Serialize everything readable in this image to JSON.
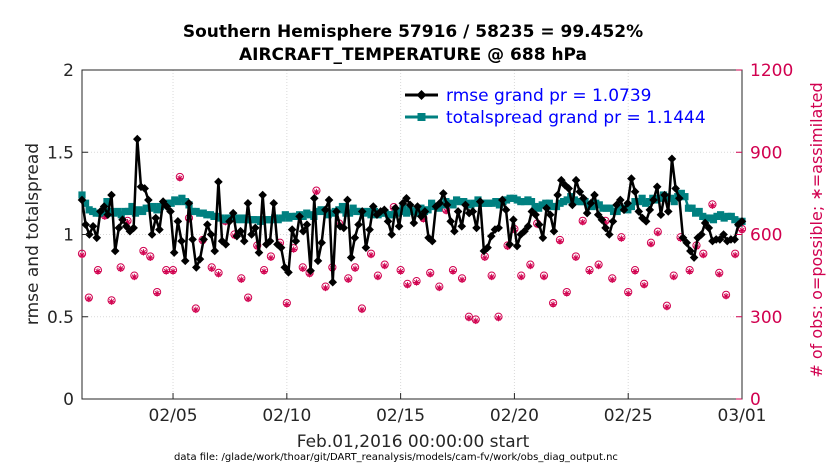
{
  "chart_data": {
    "type": "line",
    "title": "Southern Hemisphere 57916 / 58235 = 99.452%",
    "subtitle": "AIRCRAFT_TEMPERATURE @ 688 hPa",
    "xlabel": "Feb.01,2016 00:00:00 start",
    "ylabel": "rmse and totalspread",
    "y2label": "# of obs: o=possible; ∗=assimilated",
    "footnote": "data file: /glade/work/thoar/git/DART_reanalysis/models/cam-fv/work/obs_diag_output.nc",
    "xlim": [
      1,
      30
    ],
    "ylim": [
      0,
      2
    ],
    "y2lim": [
      0,
      1200
    ],
    "xticks": [
      5,
      10,
      15,
      20,
      25,
      30
    ],
    "xtick_labels": [
      "02/05",
      "02/10",
      "02/15",
      "02/20",
      "02/25",
      "03/01"
    ],
    "yticks": [
      0,
      0.5,
      1,
      1.5,
      2
    ],
    "ytick_labels": [
      "0",
      "0.5",
      "1",
      "1.5",
      "2"
    ],
    "y2ticks": [
      0,
      300,
      600,
      900,
      1200
    ],
    "y2tick_labels": [
      "0",
      "300",
      "600",
      "900",
      "1200"
    ],
    "grid": true,
    "legend_position": "top-right",
    "series": [
      {
        "name": "rmse grand pr = 1.0739",
        "color": "#000000",
        "marker": "diamond",
        "axis": "left",
        "values": [
          1.21,
          1.06,
          1.0,
          1.05,
          0.98,
          1.14,
          1.17,
          1.12,
          1.24,
          0.9,
          1.04,
          1.09,
          1.05,
          1.02,
          1.04,
          1.58,
          1.29,
          1.28,
          1.21,
          1.0,
          1.1,
          1.03,
          1.2,
          1.17,
          1.14,
          0.89,
          1.08,
          0.96,
          0.84,
          1.19,
          0.97,
          0.8,
          0.85,
          0.97,
          1.06,
          1.0,
          0.9,
          1.32,
          0.96,
          0.94,
          1.08,
          1.13,
          0.99,
          1.02,
          0.96,
          1.19,
          1.0,
          1.04,
          0.89,
          1.24,
          0.94,
          0.96,
          1.19,
          0.94,
          0.92,
          0.8,
          0.77,
          1.03,
          0.96,
          1.11,
          1.02,
          1.06,
          0.78,
          1.22,
          0.84,
          0.95,
          1.15,
          1.21,
          0.71,
          1.14,
          1.05,
          1.04,
          1.21,
          0.86,
          0.98,
          1.06,
          1.14,
          0.92,
          1.03,
          1.17,
          1.12,
          1.14,
          1.15,
          1.08,
          1.0,
          1.16,
          1.05,
          1.19,
          1.22,
          1.18,
          1.07,
          1.17,
          1.11,
          1.14,
          0.98,
          0.96,
          1.17,
          1.19,
          1.25,
          1.18,
          1.08,
          1.02,
          1.14,
          1.05,
          1.18,
          1.13,
          1.14,
          1.04,
          1.2,
          0.9,
          0.92,
          0.99,
          1.03,
          1.04,
          1.21,
          1.15,
          0.94,
          1.09,
          0.93,
          1.0,
          1.02,
          1.05,
          1.14,
          1.12,
          1.06,
          0.98,
          1.16,
          1.12,
          1.02,
          1.24,
          1.33,
          1.3,
          1.28,
          1.18,
          1.33,
          1.26,
          1.22,
          1.13,
          1.19,
          1.24,
          1.12,
          1.09,
          1.04,
          1.0,
          1.08,
          1.18,
          1.21,
          1.15,
          1.19,
          1.34,
          1.26,
          1.14,
          1.1,
          1.08,
          1.15,
          1.21,
          1.29,
          1.12,
          1.24,
          1.14,
          1.46,
          1.28,
          1.22,
          0.98,
          0.95,
          0.9,
          0.86,
          0.98,
          1.0,
          1.07,
          1.04,
          0.96,
          0.97,
          0.97,
          1.0,
          0.96,
          0.97,
          0.97,
          1.06,
          1.08
        ]
      },
      {
        "name": "totalspread grand pr = 1.1444",
        "color": "#008080",
        "marker": "square",
        "axis": "left",
        "values": [
          1.24,
          1.19,
          1.15,
          1.14,
          1.13,
          1.13,
          1.14,
          1.2,
          1.14,
          1.13,
          1.14,
          1.12,
          1.14,
          1.14,
          1.17,
          1.13,
          1.15,
          1.14,
          1.16,
          1.16,
          1.17,
          1.15,
          1.17,
          1.18,
          1.19,
          1.19,
          1.21,
          1.2,
          1.22,
          1.2,
          1.18,
          1.14,
          1.14,
          1.13,
          1.13,
          1.12,
          1.12,
          1.11,
          1.11,
          1.1,
          1.09,
          1.1,
          1.1,
          1.1,
          1.09,
          1.1,
          1.09,
          1.09,
          1.09,
          1.09,
          1.08,
          1.09,
          1.09,
          1.09,
          1.1,
          1.09,
          1.1,
          1.12,
          1.1,
          1.11,
          1.11,
          1.12,
          1.11,
          1.13,
          1.12,
          1.11,
          1.14,
          1.15,
          1.14,
          1.12,
          1.13,
          1.14,
          1.15,
          1.17,
          1.13,
          1.13,
          1.16,
          1.14,
          1.14,
          1.13,
          1.14,
          1.12,
          1.14,
          1.12,
          1.13,
          1.13,
          1.12,
          1.12,
          1.13,
          1.14,
          1.16,
          1.13,
          1.15,
          1.14,
          1.13,
          1.16,
          1.14,
          1.15,
          1.19,
          1.17,
          1.16,
          1.18,
          1.2,
          1.19,
          1.18,
          1.21,
          1.2,
          1.2,
          1.19,
          1.18,
          1.19,
          1.21,
          1.19,
          1.19,
          1.19,
          1.19,
          1.2,
          1.18,
          1.2,
          1.21,
          1.22,
          1.22,
          1.21,
          1.2,
          1.2,
          1.21,
          1.2,
          1.17,
          1.16,
          1.18,
          1.19,
          1.19,
          1.17,
          1.17,
          1.19,
          1.2,
          1.21,
          1.23,
          1.21,
          1.2,
          1.2,
          1.2,
          1.18,
          1.17,
          1.19,
          1.18,
          1.16,
          1.16,
          1.16,
          1.14,
          1.14,
          1.16,
          1.16,
          1.15,
          1.17,
          1.2,
          1.2,
          1.22,
          1.19,
          1.2,
          1.22,
          1.21,
          1.22,
          1.24,
          1.23,
          1.22,
          1.2,
          1.23,
          1.25,
          1.23,
          1.16,
          1.16,
          1.13,
          1.14,
          1.11,
          1.1,
          1.1,
          1.09,
          1.11,
          1.12,
          1.1,
          1.11,
          1.11,
          1.09,
          1.07,
          1.08
        ]
      }
    ],
    "obs_possible": {
      "name": "o=possible",
      "color": "#d1004f",
      "marker": "circle",
      "axis": "right",
      "x": [
        1.0,
        1.3,
        1.7,
        2.0,
        2.3,
        2.7,
        3.0,
        3.3,
        3.7,
        4.0,
        4.3,
        4.7,
        5.0,
        5.3,
        5.7,
        6.0,
        6.3,
        6.7,
        7.0,
        7.3,
        7.7,
        8.0,
        8.3,
        8.7,
        9.0,
        9.3,
        9.7,
        10.0,
        10.3,
        10.7,
        11.0,
        11.3,
        11.7,
        12.0,
        12.3,
        12.7,
        13.0,
        13.3,
        13.7,
        14.0,
        14.3,
        14.7,
        15.0,
        15.3,
        15.7,
        16.0,
        16.3,
        16.7,
        17.0,
        17.3,
        17.7,
        18.0,
        18.3,
        18.7,
        19.0,
        19.3,
        19.7,
        20.0,
        20.3,
        20.7,
        21.0,
        21.3,
        21.7,
        22.0,
        22.3,
        22.7,
        23.0,
        23.3,
        23.7,
        24.0,
        24.3,
        24.7,
        25.0,
        25.3,
        25.7,
        26.0,
        26.3,
        26.7,
        27.0,
        27.3,
        27.7,
        28.0,
        28.3,
        28.7,
        29.0,
        29.3,
        29.7,
        30.0
      ],
      "values": [
        530,
        370,
        470,
        670,
        360,
        480,
        650,
        450,
        540,
        520,
        390,
        470,
        470,
        810,
        660,
        330,
        580,
        480,
        460,
        650,
        600,
        440,
        370,
        560,
        470,
        520,
        570,
        350,
        550,
        480,
        460,
        760,
        410,
        480,
        640,
        440,
        480,
        330,
        530,
        450,
        490,
        700,
        470,
        420,
        430,
        660,
        460,
        410,
        690,
        470,
        440,
        300,
        290,
        520,
        450,
        300,
        560,
        620,
        450,
        490,
        640,
        450,
        350,
        580,
        390,
        520,
        650,
        470,
        490,
        650,
        440,
        590,
        390,
        470,
        420,
        570,
        610,
        340,
        450,
        590,
        470,
        560,
        530,
        710,
        460,
        380,
        530,
        620
      ]
    },
    "obs_assimilated": {
      "name": "∗=assimilated",
      "color": "#d1004f",
      "marker": "asterisk",
      "axis": "right",
      "x": [
        1.0,
        1.3,
        1.7,
        2.0,
        2.3,
        2.7,
        3.0,
        3.3,
        3.7,
        4.0,
        4.3,
        4.7,
        5.0,
        5.3,
        5.7,
        6.0,
        6.3,
        6.7,
        7.0,
        7.3,
        7.7,
        8.0,
        8.3,
        8.7,
        9.0,
        9.3,
        9.7,
        10.0,
        10.3,
        10.7,
        11.0,
        11.3,
        11.7,
        12.0,
        12.3,
        12.7,
        13.0,
        13.3,
        13.7,
        14.0,
        14.3,
        14.7,
        15.0,
        15.3,
        15.7,
        16.0,
        16.3,
        16.7,
        17.0,
        17.3,
        17.7,
        18.0,
        18.3,
        18.7,
        19.0,
        19.3,
        19.7,
        20.0,
        20.3,
        20.7,
        21.0,
        21.3,
        21.7,
        22.0,
        22.3,
        22.7,
        23.0,
        23.3,
        23.7,
        24.0,
        24.3,
        24.7,
        25.0,
        25.3,
        25.7,
        26.0,
        26.3,
        26.7,
        27.0,
        27.3,
        27.7,
        28.0,
        28.3,
        28.7,
        29.0,
        29.3,
        29.7,
        30.0
      ],
      "values": [
        525,
        365,
        465,
        665,
        355,
        475,
        645,
        445,
        535,
        515,
        385,
        465,
        465,
        805,
        655,
        325,
        575,
        475,
        455,
        645,
        595,
        435,
        365,
        555,
        465,
        515,
        565,
        345,
        545,
        475,
        455,
        755,
        405,
        475,
        635,
        435,
        475,
        325,
        525,
        445,
        485,
        695,
        465,
        415,
        425,
        655,
        455,
        405,
        685,
        465,
        435,
        295,
        285,
        515,
        445,
        295,
        555,
        615,
        445,
        485,
        635,
        445,
        345,
        575,
        385,
        515,
        645,
        465,
        485,
        645,
        435,
        585,
        385,
        465,
        415,
        565,
        605,
        335,
        445,
        585,
        465,
        555,
        525,
        705,
        455,
        375,
        525,
        615
      ]
    }
  }
}
